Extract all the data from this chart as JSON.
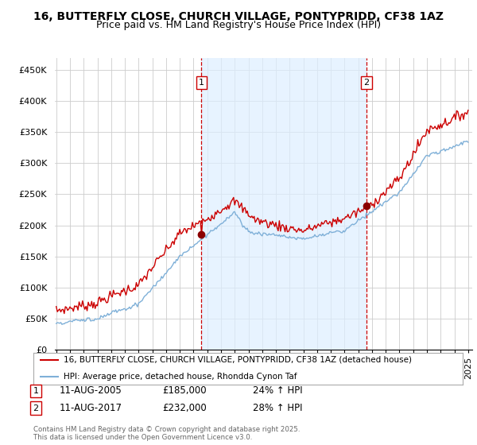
{
  "title": "16, BUTTERFLY CLOSE, CHURCH VILLAGE, PONTYPRIDD, CF38 1AZ",
  "subtitle": "Price paid vs. HM Land Registry's House Price Index (HPI)",
  "ylabel_ticks": [
    "£0",
    "£50K",
    "£100K",
    "£150K",
    "£200K",
    "£250K",
    "£300K",
    "£350K",
    "£400K",
    "£450K"
  ],
  "ytick_values": [
    0,
    50000,
    100000,
    150000,
    200000,
    250000,
    300000,
    350000,
    400000,
    450000
  ],
  "ylim": [
    0,
    470000
  ],
  "legend_line1": "16, BUTTERFLY CLOSE, CHURCH VILLAGE, PONTYPRIDD, CF38 1AZ (detached house)",
  "legend_line2": "HPI: Average price, detached house, Rhondda Cynon Taf",
  "line_color": "#cc0000",
  "hpi_color": "#7fb0d8",
  "vline_color": "#cc0000",
  "shade_color": "#ddeeff",
  "marker1_price": 185000,
  "marker2_price": 232000,
  "footnote": "Contains HM Land Registry data © Crown copyright and database right 2025.\nThis data is licensed under the Open Government Licence v3.0.",
  "background_color": "#ffffff",
  "grid_color": "#cccccc",
  "title_fontsize": 10,
  "subtitle_fontsize": 9,
  "tick_fontsize": 8,
  "legend_fontsize": 8
}
